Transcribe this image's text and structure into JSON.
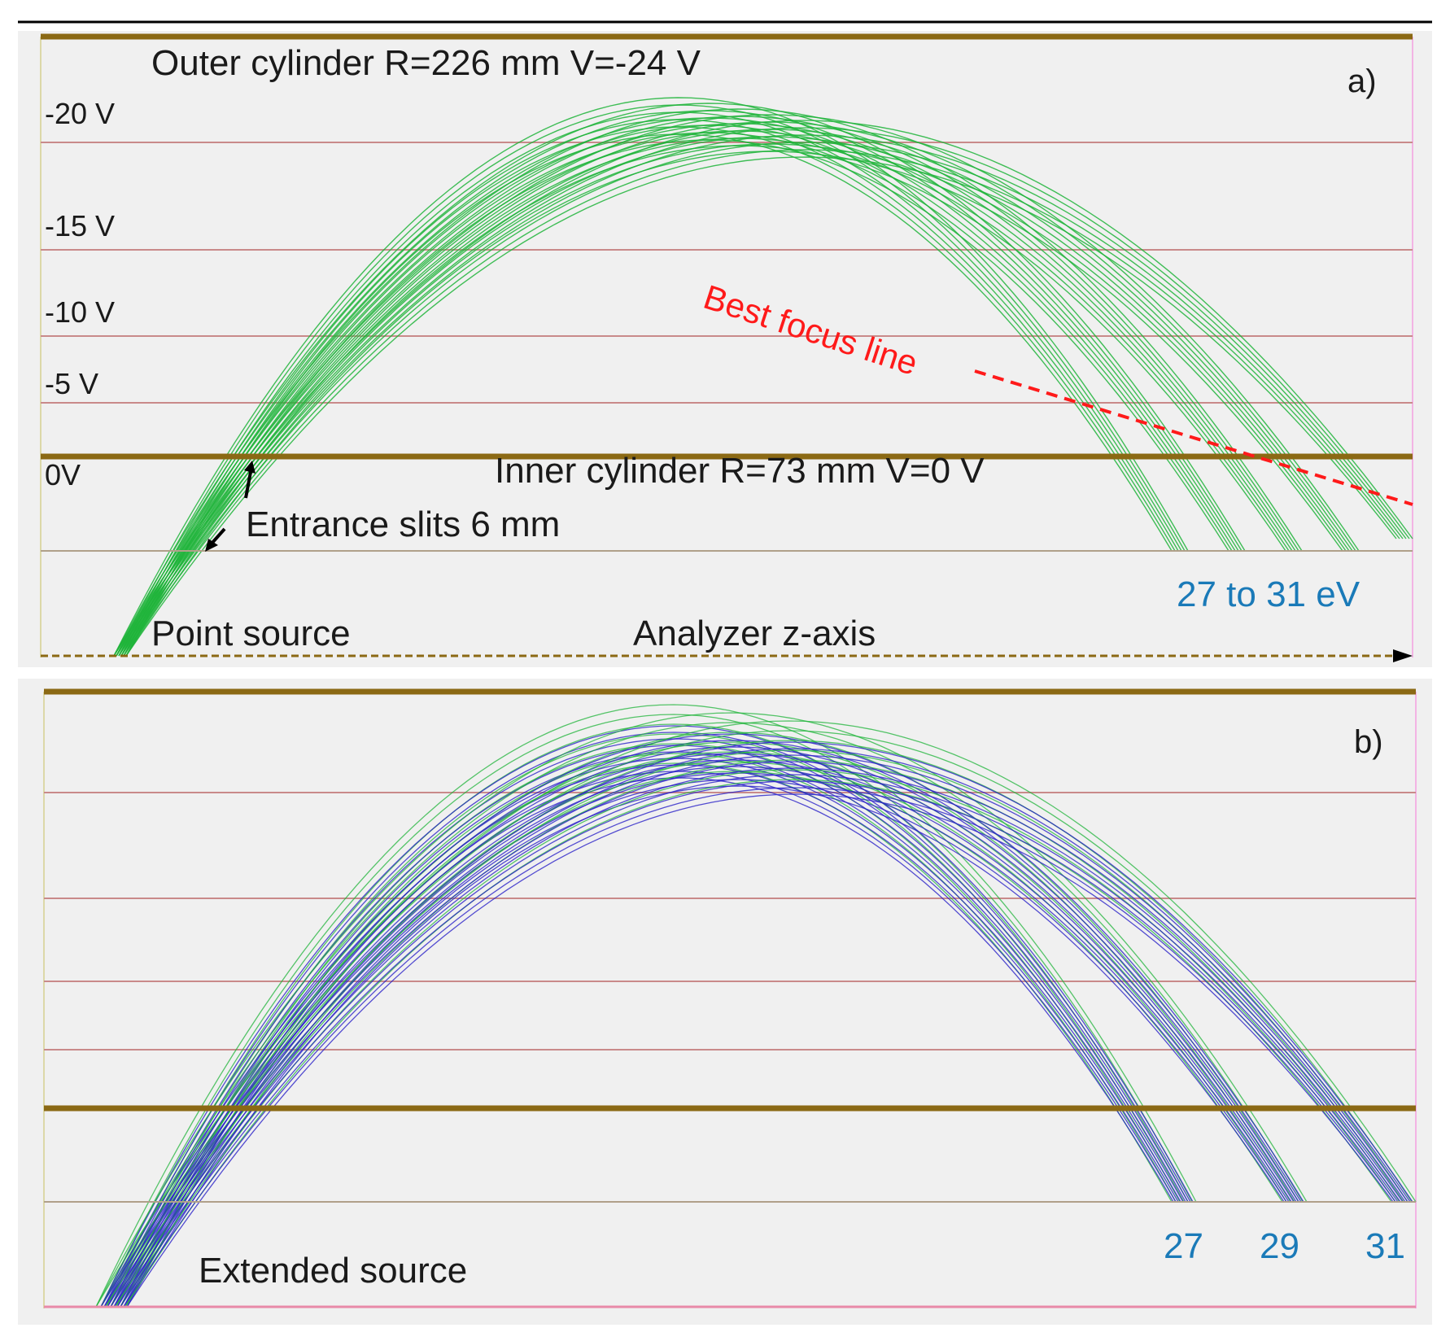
{
  "panel_a": {
    "tag": "a)",
    "outer_label": "Outer cylinder R=226 mm V=-24 V",
    "inner_label": "Inner cylinder R=73 mm V=0 V",
    "entrance_label": "Entrance slits 6 mm",
    "source_label": "Point source",
    "axis_label": "Analyzer z-axis",
    "focus_label": "Best focus line",
    "energy_label": "27 to 31 eV",
    "voltages": [
      "-20 V",
      "-15 V",
      "-10 V",
      "-5 V",
      "0V"
    ],
    "ray_energies_ev": [
      27,
      28,
      29,
      30,
      31
    ]
  },
  "panel_b": {
    "tag": "b)",
    "source_label": "Extended source",
    "energy_labels": [
      "27",
      "29",
      "31"
    ],
    "ray_energies_ev": [
      27,
      29,
      31
    ]
  },
  "colors": {
    "cylinder": "#8B6914",
    "equipotential": "#c98a8a",
    "green_rays": "#1fb43a",
    "blue_rays": "#2a22c8",
    "focus_line": "#ff1a1a",
    "energy_text": "#1a7ab8",
    "panel_bg": "#f0f0f0"
  }
}
